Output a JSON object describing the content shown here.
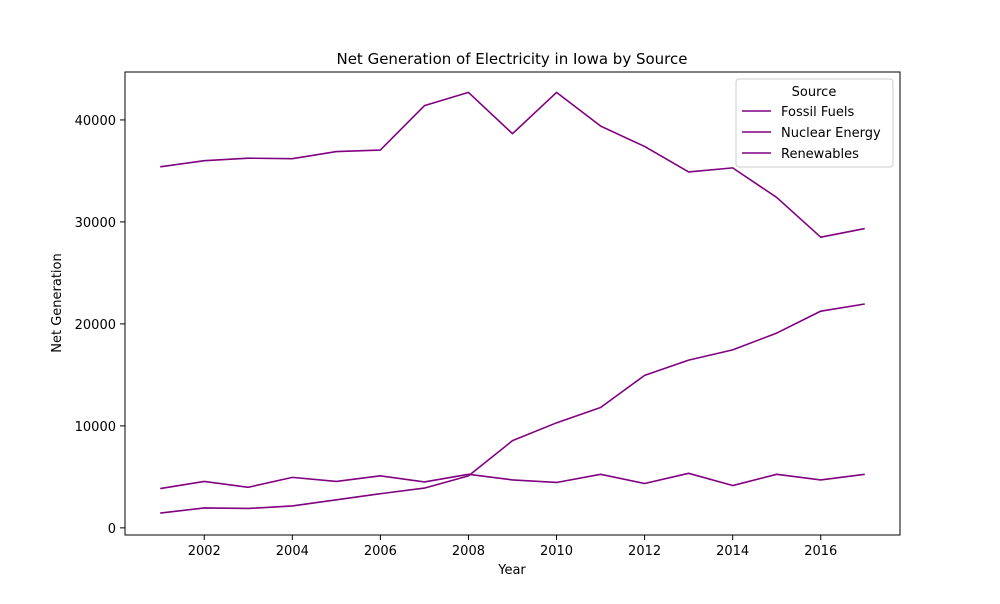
{
  "chart_data": {
    "type": "line",
    "title": "Net Generation of Electricity in Iowa by Source",
    "xlabel": "Year",
    "ylabel": "Net Generation",
    "x": [
      2001,
      2002,
      2003,
      2004,
      2005,
      2006,
      2007,
      2008,
      2009,
      2010,
      2011,
      2012,
      2013,
      2014,
      2015,
      2016,
      2017
    ],
    "xlim": [
      2000.2,
      2017.8
    ],
    "ylim": [
      -700,
      44700
    ],
    "xticks": [
      2002,
      2004,
      2006,
      2008,
      2010,
      2012,
      2014,
      2016
    ],
    "yticks": [
      0,
      10000,
      20000,
      30000,
      40000
    ],
    "grid": false,
    "legend": {
      "title": "Source",
      "placement": "top-right"
    },
    "line_color": "#800080",
    "series": [
      {
        "name": "Fossil Fuels",
        "values": [
          35400,
          36000,
          36250,
          36200,
          36900,
          37050,
          41400,
          42700,
          38650,
          42700,
          39400,
          37400,
          34900,
          35300,
          32400,
          28500,
          29350
        ]
      },
      {
        "name": "Nuclear Energy",
        "values": [
          3850,
          4550,
          3980,
          4950,
          4550,
          5100,
          4500,
          5250,
          4700,
          4450,
          5250,
          4350,
          5350,
          4150,
          5250,
          4700,
          5250
        ]
      },
      {
        "name": "Renewables",
        "values": [
          1450,
          1950,
          1900,
          2150,
          2750,
          3350,
          3900,
          5100,
          8550,
          10300,
          11800,
          14950,
          16450,
          17450,
          19100,
          21250,
          21950
        ]
      }
    ]
  }
}
